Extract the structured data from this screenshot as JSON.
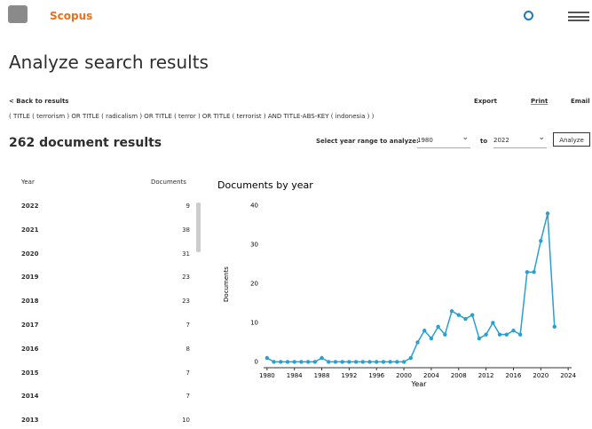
{
  "header": {
    "brand": "Scopus"
  },
  "page_title": "Analyze search results",
  "back_link": "< Back to results",
  "query": "( TITLE ( terrorism ) OR TITLE ( radicalism ) OR TITLE ( terror ) OR TITLE ( terrorist ) AND TITLE-ABS-KEY ( indonesia ) )",
  "actions": {
    "export": "Export",
    "print": "Print",
    "email": "Email"
  },
  "result_count": "262 document results",
  "range": {
    "label": "Select year range to analyze:",
    "from": "1980",
    "to_label": "to",
    "to": "2022",
    "button": "Analyze"
  },
  "table": {
    "headers": [
      "Year",
      "Documents"
    ],
    "rows": [
      [
        "2022",
        "9"
      ],
      [
        "2021",
        "38"
      ],
      [
        "2020",
        "31"
      ],
      [
        "2019",
        "23"
      ],
      [
        "2018",
        "23"
      ],
      [
        "2017",
        "7"
      ],
      [
        "2016",
        "8"
      ],
      [
        "2015",
        "7"
      ],
      [
        "2014",
        "7"
      ],
      [
        "2013",
        "10"
      ]
    ]
  },
  "chart_data": {
    "type": "line",
    "title": "Documents by year",
    "x_label": "Year",
    "y_label": "Documents",
    "color": "#2a9fd0",
    "x": [
      1980,
      1981,
      1982,
      1983,
      1984,
      1985,
      1986,
      1987,
      1988,
      1989,
      1990,
      1991,
      1992,
      1993,
      1994,
      1995,
      1996,
      1997,
      1998,
      1999,
      2000,
      2001,
      2002,
      2003,
      2004,
      2005,
      2006,
      2007,
      2008,
      2009,
      2010,
      2011,
      2012,
      2013,
      2014,
      2015,
      2016,
      2017,
      2018,
      2019,
      2020,
      2021,
      2022
    ],
    "values": [
      1,
      0,
      0,
      0,
      0,
      0,
      0,
      0,
      1,
      0,
      0,
      0,
      0,
      0,
      0,
      0,
      0,
      0,
      0,
      0,
      0,
      1,
      5,
      8,
      6,
      9,
      7,
      13,
      12,
      11,
      12,
      6,
      7,
      10,
      7,
      7,
      8,
      7,
      23,
      23,
      31,
      38,
      9
    ],
    "xlim": [
      1979.5,
      2024.5
    ],
    "xticks": [
      1980,
      1984,
      1988,
      1992,
      1996,
      2000,
      2004,
      2008,
      2012,
      2016,
      2020,
      2024
    ],
    "ylim": [
      -1.5,
      41.5
    ],
    "yticks": [
      0,
      10,
      20,
      30,
      40
    ]
  }
}
